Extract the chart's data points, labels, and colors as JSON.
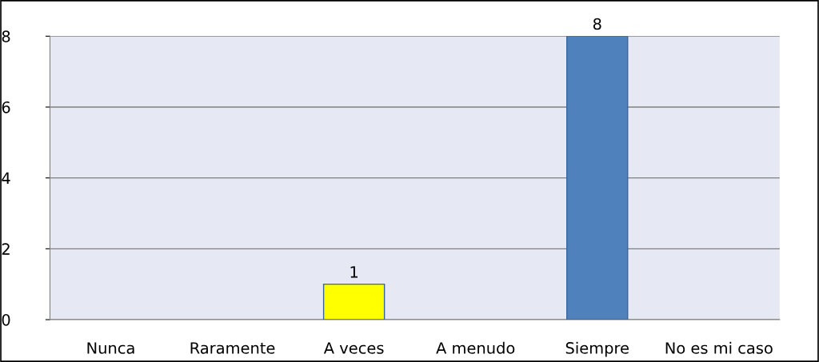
{
  "chart_data": {
    "type": "bar",
    "categories": [
      "Nunca",
      "Raramente",
      "A veces",
      "A menudo",
      "Siempre",
      "No es mi caso"
    ],
    "values": [
      0,
      0,
      1,
      0,
      8,
      0
    ],
    "colors": [
      "#4f81bd",
      "#4f81bd",
      "#ffff00",
      "#4f81bd",
      "#4f81bd",
      "#4f81bd"
    ],
    "value_labels": [
      null,
      null,
      "1",
      null,
      "8",
      null
    ],
    "ylim": [
      0,
      8
    ],
    "yticks": [
      0,
      2,
      4,
      6,
      8
    ],
    "grid": "y"
  }
}
